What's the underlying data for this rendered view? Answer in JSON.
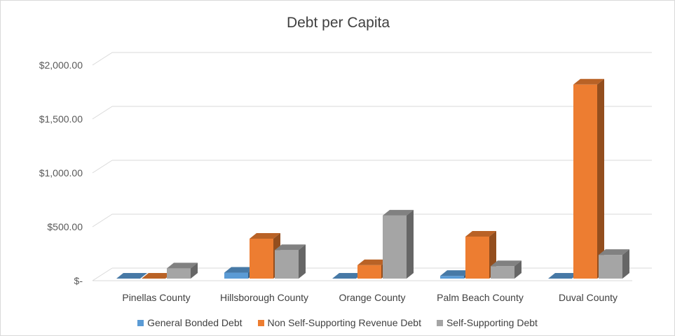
{
  "chart_data": {
    "type": "bar",
    "title": "Debt per Capita",
    "categories": [
      "Pinellas County",
      "Hillsborough County",
      "Orange County",
      "Palm Beach County",
      "Duval County"
    ],
    "series": [
      {
        "name": "General Bonded Debt",
        "color": "#5b9bd5",
        "values": [
          0,
          55,
          0,
          25,
          0
        ]
      },
      {
        "name": "Non Self-Supporting Revenue Debt",
        "color": "#ed7d31",
        "values": [
          0,
          370,
          125,
          390,
          1800
        ]
      },
      {
        "name": "Self-Supporting Debt",
        "color": "#a5a5a5",
        "values": [
          95,
          265,
          585,
          115,
          220
        ]
      }
    ],
    "y_ticks": [
      {
        "value": 0,
        "label": "$-"
      },
      {
        "value": 500,
        "label": "$500.00"
      },
      {
        "value": 1000,
        "label": "$1,000.00"
      },
      {
        "value": 1500,
        "label": "$1,500.00"
      },
      {
        "value": 2000,
        "label": "$2,000.00"
      }
    ],
    "ylim": [
      0,
      2000
    ],
    "grid": true,
    "legend_position": "bottom",
    "style": "3d-clustered-column"
  }
}
